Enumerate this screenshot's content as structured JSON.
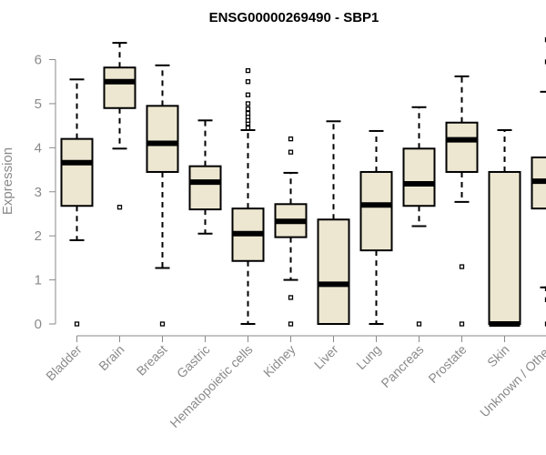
{
  "chart_data": {
    "type": "boxplot",
    "title": "ENSG00000269490 - SBP1",
    "xlabel": "",
    "ylabel": "Expression",
    "ylim": [
      0,
      6.5
    ],
    "yticks": [
      "0",
      "1",
      "2",
      "3",
      "4",
      "5",
      "6"
    ],
    "box_color": "#ede7d1",
    "categories": [
      "Bladder",
      "Brain",
      "Breast",
      "Gastric",
      "Hematopoietic cells",
      "Kidney",
      "Liver",
      "Lung",
      "Pancreas",
      "Prostate",
      "Skin",
      "Unknown / Other"
    ],
    "boxes": [
      {
        "q1": 2.68,
        "median": 3.66,
        "q3": 4.2,
        "whisker_low": 1.9,
        "whisker_high": 5.55,
        "outliers": [
          0
        ]
      },
      {
        "q1": 4.9,
        "median": 5.5,
        "q3": 5.82,
        "whisker_low": 3.98,
        "whisker_high": 6.38,
        "outliers": [
          2.65
        ]
      },
      {
        "q1": 3.45,
        "median": 4.1,
        "q3": 4.95,
        "whisker_low": 1.27,
        "whisker_high": 5.87,
        "outliers": [
          0
        ]
      },
      {
        "q1": 2.6,
        "median": 3.22,
        "q3": 3.58,
        "whisker_low": 2.05,
        "whisker_high": 4.62,
        "outliers": []
      },
      {
        "q1": 1.43,
        "median": 2.05,
        "q3": 2.62,
        "whisker_low": 0.0,
        "whisker_high": 4.4,
        "outliers": [
          4.45,
          4.55,
          4.62,
          4.7,
          4.78,
          4.88,
          5.0,
          5.2,
          5.5,
          5.75
        ]
      },
      {
        "q1": 1.97,
        "median": 2.33,
        "q3": 2.72,
        "whisker_low": 1.0,
        "whisker_high": 3.43,
        "outliers": [
          0,
          0.6,
          3.9,
          4.2
        ]
      },
      {
        "q1": 0.0,
        "median": 0.9,
        "q3": 2.37,
        "whisker_low": 0.0,
        "whisker_high": 4.6,
        "outliers": []
      },
      {
        "q1": 1.67,
        "median": 2.7,
        "q3": 3.45,
        "whisker_low": 0.0,
        "whisker_high": 4.38,
        "outliers": []
      },
      {
        "q1": 2.68,
        "median": 3.18,
        "q3": 3.98,
        "whisker_low": 2.22,
        "whisker_high": 4.92,
        "outliers": [
          0
        ]
      },
      {
        "q1": 3.45,
        "median": 4.18,
        "q3": 4.57,
        "whisker_low": 2.77,
        "whisker_high": 5.62,
        "outliers": [
          0,
          1.3
        ]
      },
      {
        "q1": 0.0,
        "median": 0.0,
        "q3": 3.45,
        "whisker_low": 0.0,
        "whisker_high": 4.4,
        "outliers": []
      },
      {
        "q1": 2.62,
        "median": 3.24,
        "q3": 3.78,
        "whisker_low": 0.83,
        "whisker_high": 5.27,
        "outliers": [
          0,
          0.55,
          0.8,
          5.95,
          6.45
        ]
      }
    ]
  }
}
